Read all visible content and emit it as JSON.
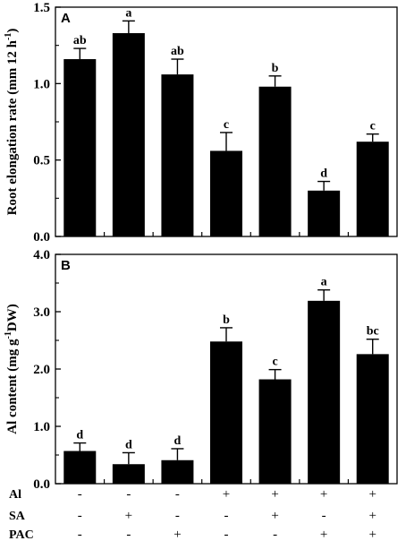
{
  "chart_data": [
    {
      "type": "bar",
      "panel_label": "A",
      "ylabel": "Root elongation rate (mm 12 h",
      "ylabel_sup": "-1",
      "ylabel_end": ")",
      "ylim": [
        0,
        1.5
      ],
      "yticks": [
        0.0,
        0.5,
        1.0,
        1.5
      ],
      "ytick_labels": [
        "0.0",
        "0.5",
        "1.0",
        "1.5"
      ],
      "grid": false,
      "color": "#000000",
      "values": [
        1.16,
        1.33,
        1.06,
        0.56,
        0.98,
        0.3,
        0.62
      ],
      "errors": [
        0.07,
        0.08,
        0.1,
        0.12,
        0.07,
        0.06,
        0.05
      ],
      "letters": [
        "ab",
        "a",
        "ab",
        "c",
        "b",
        "d",
        "c"
      ]
    },
    {
      "type": "bar",
      "panel_label": "B",
      "ylabel": "Al content (mg g",
      "ylabel_sup": "-1",
      "ylabel_end": "DW)",
      "ylim": [
        0,
        4.0
      ],
      "yticks": [
        0.0,
        1.0,
        2.0,
        3.0,
        4.0
      ],
      "ytick_labels": [
        "0.0",
        "1.0",
        "2.0",
        "3.0",
        "4.0"
      ],
      "grid": false,
      "color": "#000000",
      "values": [
        0.57,
        0.34,
        0.41,
        2.48,
        1.82,
        3.19,
        2.26
      ],
      "errors": [
        0.14,
        0.2,
        0.2,
        0.24,
        0.17,
        0.19,
        0.26
      ],
      "letters": [
        "d",
        "d",
        "d",
        "b",
        "c",
        "a",
        "bc"
      ]
    }
  ],
  "treatments": [
    {
      "name": "Al",
      "signs": [
        "-",
        "-",
        "-",
        "+",
        "+",
        "+",
        "+"
      ]
    },
    {
      "name": "SA",
      "signs": [
        "-",
        "+",
        "-",
        "-",
        "+",
        "-",
        "+"
      ]
    },
    {
      "name": "PAC",
      "signs": [
        "-",
        "-",
        "+",
        "-",
        "-",
        "+",
        "+"
      ]
    }
  ]
}
